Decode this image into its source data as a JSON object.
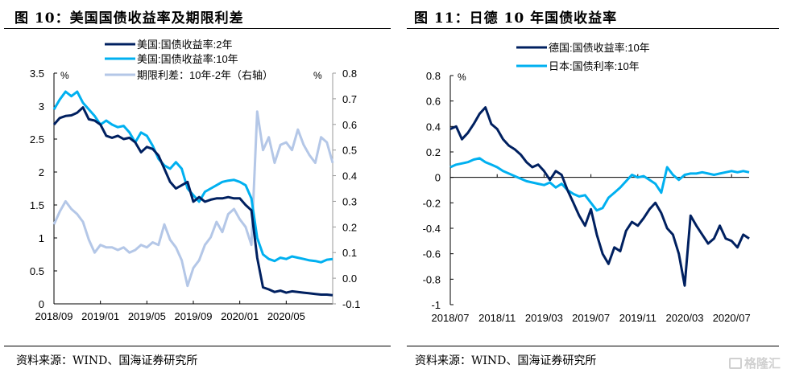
{
  "figures": [
    {
      "title": "图 10：美国国债收益率及期限利差",
      "source": "资料来源：WIND、国海证券研究所"
    },
    {
      "title": "图 11：日德 10 年国债收益率",
      "source": "资料来源：WIND、国海证券研究所"
    }
  ],
  "watermark": "格隆汇",
  "chart_data": [
    {
      "type": "line",
      "title": "美国国债收益率及期限利差",
      "ylabel": "%",
      "y2label": "%",
      "ylim": [
        0,
        3.5
      ],
      "y2lim": [
        -0.1,
        0.8
      ],
      "yticks": [
        "0",
        "0.5",
        "1",
        "1.5",
        "2",
        "2.5",
        "3",
        "3.5"
      ],
      "y2ticks": [
        "-0.1",
        "0.0",
        "0.1",
        "0.2",
        "0.3",
        "0.4",
        "0.5",
        "0.6",
        "0.7",
        "0.8"
      ],
      "xticks": [
        "2018/09",
        "2019/01",
        "2019/05",
        "2019/09",
        "2020/01",
        "2020/05"
      ],
      "xrange_months": [
        0,
        24
      ],
      "legend_position": "top-center",
      "series": [
        {
          "name": "美国:国债收益率:2年",
          "axis": "left",
          "color": "#002060",
          "x": [
            0,
            0.5,
            1,
            1.5,
            2,
            2.5,
            3,
            3.5,
            4,
            4.5,
            5,
            5.5,
            6,
            6.5,
            7,
            7.5,
            8,
            8.5,
            9,
            9.5,
            10,
            10.5,
            11,
            11.5,
            12,
            12.5,
            13,
            13.5,
            14,
            14.5,
            15,
            15.5,
            16,
            16.5,
            17,
            17.5,
            18,
            18.5,
            19,
            19.5,
            20,
            20.5,
            21,
            21.5,
            22,
            22.5,
            23,
            23.5,
            24
          ],
          "values": [
            2.72,
            2.82,
            2.85,
            2.86,
            2.9,
            2.98,
            2.8,
            2.78,
            2.72,
            2.55,
            2.52,
            2.55,
            2.5,
            2.52,
            2.45,
            2.3,
            2.38,
            2.35,
            2.25,
            2.05,
            1.85,
            1.75,
            1.8,
            1.85,
            1.55,
            1.62,
            1.55,
            1.58,
            1.6,
            1.6,
            1.62,
            1.6,
            1.6,
            1.5,
            1.42,
            0.7,
            0.25,
            0.22,
            0.18,
            0.2,
            0.17,
            0.19,
            0.18,
            0.17,
            0.16,
            0.15,
            0.14,
            0.14,
            0.13
          ]
        },
        {
          "name": "美国:国债收益率:10年",
          "axis": "left",
          "color": "#00B0F0",
          "x": [
            0,
            0.5,
            1,
            1.5,
            2,
            2.5,
            3,
            3.5,
            4,
            4.5,
            5,
            5.5,
            6,
            6.5,
            7,
            7.5,
            8,
            8.5,
            9,
            9.5,
            10,
            10.5,
            11,
            11.5,
            12,
            12.5,
            13,
            13.5,
            14,
            14.5,
            15,
            15.5,
            16,
            16.5,
            17,
            17.5,
            18,
            18.5,
            19,
            19.5,
            20,
            20.5,
            21,
            21.5,
            22,
            22.5,
            23,
            23.5,
            24
          ],
          "values": [
            2.95,
            3.1,
            3.22,
            3.15,
            3.22,
            3.05,
            2.95,
            2.85,
            2.72,
            2.78,
            2.72,
            2.68,
            2.7,
            2.6,
            2.45,
            2.6,
            2.55,
            2.4,
            2.2,
            2.1,
            2.05,
            2.15,
            2.05,
            1.75,
            1.65,
            1.55,
            1.7,
            1.75,
            1.8,
            1.85,
            1.87,
            1.88,
            1.85,
            1.8,
            1.6,
            1.0,
            0.75,
            0.68,
            0.65,
            0.7,
            0.68,
            0.72,
            0.7,
            0.68,
            0.66,
            0.65,
            0.63,
            0.67,
            0.68
          ]
        },
        {
          "name": "期限利差：10年-2年（右轴）",
          "axis": "right",
          "color": "#B4C7E7",
          "x": [
            0,
            0.5,
            1,
            1.5,
            2,
            2.5,
            3,
            3.5,
            4,
            4.5,
            5,
            5.5,
            6,
            6.5,
            7,
            7.5,
            8,
            8.5,
            9,
            9.5,
            10,
            10.5,
            11,
            11.5,
            12,
            12.5,
            13,
            13.5,
            14,
            14.5,
            15,
            15.5,
            16,
            16.5,
            17,
            17.5,
            18,
            18.5,
            19,
            19.5,
            20,
            20.5,
            21,
            21.5,
            22,
            22.5,
            23,
            23.5,
            24
          ],
          "values": [
            0.21,
            0.26,
            0.3,
            0.27,
            0.25,
            0.22,
            0.15,
            0.1,
            0.13,
            0.12,
            0.12,
            0.11,
            0.12,
            0.1,
            0.11,
            0.13,
            0.12,
            0.14,
            0.13,
            0.21,
            0.15,
            0.12,
            0.07,
            -0.03,
            0.04,
            0.07,
            0.13,
            0.16,
            0.22,
            0.18,
            0.25,
            0.27,
            0.23,
            0.2,
            0.13,
            0.65,
            0.5,
            0.55,
            0.45,
            0.52,
            0.53,
            0.5,
            0.58,
            0.52,
            0.48,
            0.45,
            0.55,
            0.53,
            0.45
          ]
        }
      ]
    },
    {
      "type": "line",
      "title": "日德 10 年国债收益率",
      "ylabel": "%",
      "ylim": [
        -1,
        0.8
      ],
      "yticks": [
        "-1",
        "-0.8",
        "-0.6",
        "-0.4",
        "-0.2",
        "0",
        "0.2",
        "0.4",
        "0.6",
        "0.8"
      ],
      "xticks": [
        "2018/07",
        "2018/11",
        "2019/03",
        "2019/07",
        "2019/11",
        "2020/03",
        "2020/07"
      ],
      "xrange_months": [
        0,
        25.5
      ],
      "legend_position": "top-center",
      "series": [
        {
          "name": "德国:国债收益率:10年",
          "color": "#002060",
          "x": [
            0,
            0.5,
            1,
            1.5,
            2,
            2.5,
            3,
            3.5,
            4,
            4.5,
            5,
            5.5,
            6,
            6.5,
            7,
            7.5,
            8,
            8.5,
            9,
            9.5,
            10,
            10.5,
            11,
            11.5,
            12,
            12.5,
            13,
            13.5,
            14,
            14.5,
            15,
            15.5,
            16,
            16.5,
            17,
            17.5,
            18,
            18.5,
            19,
            19.5,
            20,
            20.5,
            21,
            21.5,
            22,
            22.5,
            23,
            23.5,
            24,
            24.5,
            25,
            25.5
          ],
          "values": [
            0.38,
            0.4,
            0.3,
            0.35,
            0.42,
            0.5,
            0.55,
            0.42,
            0.38,
            0.3,
            0.25,
            0.22,
            0.18,
            0.12,
            0.08,
            0.1,
            0.05,
            -0.02,
            0.05,
            0.02,
            -0.1,
            -0.2,
            -0.3,
            -0.38,
            -0.25,
            -0.45,
            -0.6,
            -0.68,
            -0.55,
            -0.58,
            -0.42,
            -0.35,
            -0.38,
            -0.32,
            -0.25,
            -0.2,
            -0.28,
            -0.4,
            -0.45,
            -0.6,
            -0.85,
            -0.3,
            -0.38,
            -0.45,
            -0.52,
            -0.48,
            -0.38,
            -0.48,
            -0.5,
            -0.55,
            -0.45,
            -0.48
          ]
        },
        {
          "name": "日本:国债利率:10年",
          "color": "#00B0F0",
          "x": [
            0,
            0.5,
            1,
            1.5,
            2,
            2.5,
            3,
            3.5,
            4,
            4.5,
            5,
            5.5,
            6,
            6.5,
            7,
            7.5,
            8,
            8.5,
            9,
            9.5,
            10,
            10.5,
            11,
            11.5,
            12,
            12.5,
            13,
            13.5,
            14,
            14.5,
            15,
            15.5,
            16,
            16.5,
            17,
            17.5,
            18,
            18.5,
            19,
            19.5,
            20,
            20.5,
            21,
            21.5,
            22,
            22.5,
            23,
            23.5,
            24,
            24.5,
            25,
            25.5
          ],
          "values": [
            0.08,
            0.1,
            0.11,
            0.12,
            0.14,
            0.15,
            0.12,
            0.1,
            0.08,
            0.05,
            0.03,
            0.01,
            -0.01,
            -0.03,
            -0.04,
            -0.05,
            -0.06,
            -0.04,
            -0.08,
            -0.05,
            -0.1,
            -0.13,
            -0.15,
            -0.14,
            -0.2,
            -0.26,
            -0.24,
            -0.16,
            -0.12,
            -0.08,
            -0.03,
            0.02,
            0.0,
            0.01,
            -0.02,
            -0.05,
            -0.12,
            0.08,
            0.02,
            -0.02,
            0.02,
            0.03,
            0.03,
            0.04,
            0.03,
            0.02,
            0.03,
            0.04,
            0.05,
            0.04,
            0.05,
            0.04
          ]
        }
      ]
    }
  ]
}
